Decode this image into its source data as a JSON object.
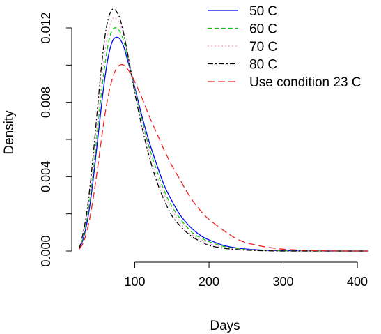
{
  "chart_data": {
    "type": "line",
    "xlabel": "Days",
    "ylabel": "Density",
    "xlim": [
      15,
      430
    ],
    "ylim": [
      -0.0006,
      0.0135
    ],
    "x_ticks": [
      {
        "value": 100,
        "label": "100"
      },
      {
        "value": 200,
        "label": "200"
      },
      {
        "value": 300,
        "label": "300"
      },
      {
        "value": 400,
        "label": "400"
      }
    ],
    "y_ticks": [
      {
        "value": 0.0,
        "label": "0.000"
      },
      {
        "value": 0.002,
        "label": ""
      },
      {
        "value": 0.004,
        "label": "0.004"
      },
      {
        "value": 0.006,
        "label": ""
      },
      {
        "value": 0.008,
        "label": "0.008"
      },
      {
        "value": 0.01,
        "label": ""
      },
      {
        "value": 0.012,
        "label": "0.012"
      }
    ],
    "grid": false,
    "legend_position": "top-right",
    "series": [
      {
        "name": "50 C",
        "color": "#0000ff",
        "dash": "solid",
        "x": [
          25,
          30,
          35,
          40,
          45,
          50,
          55,
          60,
          65,
          70,
          75,
          80,
          85,
          90,
          95,
          100,
          110,
          120,
          130,
          140,
          150,
          160,
          170,
          180,
          190,
          200,
          220,
          240,
          260,
          280,
          300,
          330,
          360,
          390,
          415
        ],
        "y": [
          0.0001,
          0.0006,
          0.0014,
          0.0026,
          0.0042,
          0.006,
          0.0078,
          0.0094,
          0.0106,
          0.0113,
          0.0115,
          0.0114,
          0.011,
          0.0103,
          0.0096,
          0.0088,
          0.0072,
          0.0058,
          0.0046,
          0.0035,
          0.0027,
          0.002,
          0.0015,
          0.0011,
          0.0008,
          0.0006,
          0.0003,
          0.00015,
          8e-05,
          4e-05,
          2e-05,
          1e-05,
          0.0,
          0.0,
          0.0
        ]
      },
      {
        "name": "60 C",
        "color": "#00cc00",
        "dash": "6,4",
        "x": [
          25,
          30,
          35,
          40,
          45,
          50,
          55,
          60,
          65,
          70,
          75,
          80,
          85,
          90,
          95,
          100,
          110,
          120,
          130,
          140,
          150,
          160,
          170,
          180,
          190,
          200,
          220,
          240,
          260,
          280,
          300,
          330,
          360,
          390,
          415
        ],
        "y": [
          0.0001,
          0.0007,
          0.0016,
          0.0029,
          0.0046,
          0.0066,
          0.0085,
          0.0101,
          0.0113,
          0.0119,
          0.012,
          0.0118,
          0.0113,
          0.0105,
          0.0096,
          0.0087,
          0.007,
          0.0055,
          0.0043,
          0.0032,
          0.0024,
          0.0018,
          0.0013,
          0.0009,
          0.0007,
          0.0005,
          0.00025,
          0.00012,
          6e-05,
          3e-05,
          1e-05,
          0.0,
          0.0,
          0.0,
          0.0
        ]
      },
      {
        "name": "70 C",
        "color": "#ff99cc",
        "dash": "2,3",
        "x": [
          25,
          30,
          35,
          40,
          45,
          50,
          55,
          60,
          65,
          70,
          75,
          80,
          85,
          90,
          95,
          100,
          110,
          120,
          130,
          140,
          150,
          160,
          170,
          180,
          190,
          200,
          220,
          240,
          260,
          280,
          300,
          330,
          360,
          390,
          415
        ],
        "y": [
          0.0001,
          0.0008,
          0.0018,
          0.0032,
          0.005,
          0.0071,
          0.0091,
          0.0108,
          0.0119,
          0.0125,
          0.0125,
          0.0122,
          0.0116,
          0.0107,
          0.0097,
          0.0087,
          0.0069,
          0.0053,
          0.004,
          0.003,
          0.0022,
          0.0016,
          0.0011,
          0.0008,
          0.0006,
          0.0004,
          0.0002,
          0.0001,
          5e-05,
          2e-05,
          1e-05,
          0.0,
          0.0,
          0.0,
          0.0
        ]
      },
      {
        "name": "80 C",
        "color": "#000000",
        "dash": "8,3,2,3",
        "x": [
          25,
          30,
          35,
          40,
          45,
          50,
          55,
          60,
          65,
          70,
          75,
          80,
          85,
          90,
          95,
          100,
          110,
          120,
          130,
          140,
          150,
          160,
          170,
          180,
          190,
          200,
          220,
          240,
          260,
          280,
          300,
          330,
          360,
          390,
          415
        ],
        "y": [
          0.0001,
          0.0009,
          0.002,
          0.0036,
          0.0056,
          0.0078,
          0.0099,
          0.0116,
          0.0126,
          0.013,
          0.0129,
          0.0125,
          0.0117,
          0.0107,
          0.0096,
          0.0085,
          0.0066,
          0.005,
          0.0037,
          0.0027,
          0.0019,
          0.0014,
          0.001,
          0.0007,
          0.0005,
          0.0003,
          0.00015,
          7e-05,
          3e-05,
          1e-05,
          0.0,
          0.0,
          0.0,
          0.0,
          0.0
        ]
      },
      {
        "name": "Use condition 23 C",
        "color": "#ee2222",
        "dash": "10,5",
        "x": [
          25,
          30,
          35,
          40,
          45,
          50,
          55,
          60,
          65,
          70,
          75,
          80,
          85,
          90,
          95,
          100,
          110,
          120,
          130,
          140,
          150,
          160,
          170,
          180,
          190,
          200,
          220,
          240,
          260,
          280,
          300,
          330,
          360,
          390,
          415
        ],
        "y": [
          0.0001,
          0.0004,
          0.001,
          0.0019,
          0.0031,
          0.0045,
          0.006,
          0.0074,
          0.0085,
          0.0093,
          0.0098,
          0.01,
          0.01,
          0.0098,
          0.0095,
          0.0091,
          0.0082,
          0.0072,
          0.0063,
          0.0054,
          0.0046,
          0.0039,
          0.0032,
          0.0026,
          0.0021,
          0.0017,
          0.0011,
          0.0006,
          0.00035,
          0.0002,
          0.0001,
          4e-05,
          1e-05,
          0.0,
          0.0
        ]
      }
    ]
  }
}
